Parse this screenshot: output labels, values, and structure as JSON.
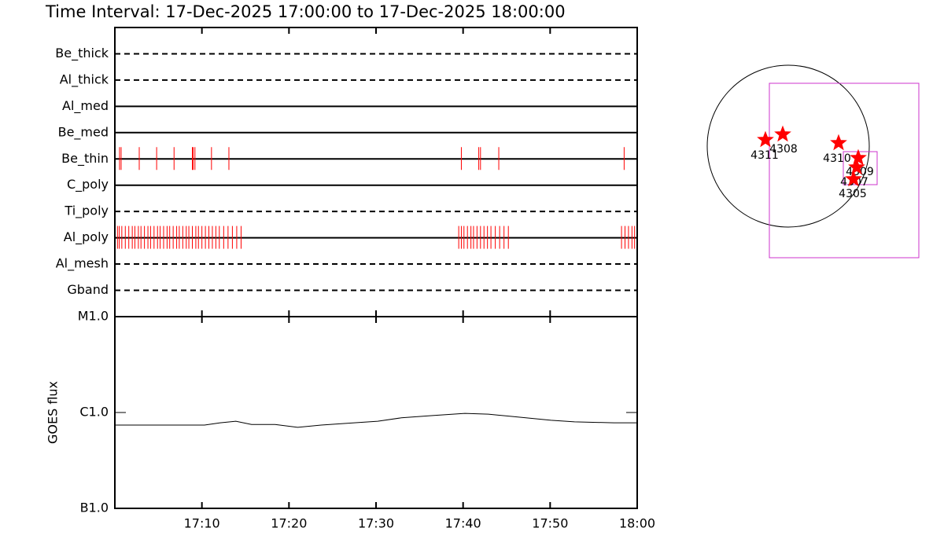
{
  "title": "Time Interval: 17-Dec-2025 17:00:00 to 17-Dec-2025 18:00:00",
  "chart_data": [
    {
      "type": "event",
      "xlim": [
        0,
        60
      ],
      "event_color": "#ff0000",
      "rows": [
        {
          "name": "Be_thick",
          "line_style": "dashed",
          "events": []
        },
        {
          "name": "Al_thick",
          "line_style": "dashed",
          "events": []
        },
        {
          "name": "Al_med",
          "line_style": "solid",
          "events": []
        },
        {
          "name": "Be_med",
          "line_style": "solid",
          "events": []
        },
        {
          "name": "Be_thin",
          "line_style": "solid",
          "events": [
            0.54,
            0.72,
            2.8,
            4.8,
            6.8,
            8.9,
            9.0,
            9.2,
            11.1,
            13.1,
            39.8,
            41.8,
            42.0,
            44.1,
            58.5
          ]
        },
        {
          "name": "C_poly",
          "line_style": "solid",
          "events": []
        },
        {
          "name": "Ti_poly",
          "line_style": "dashed",
          "events": []
        },
        {
          "name": "Al_poly",
          "line_style": "solid",
          "events": [
            0.3,
            0.5,
            0.8,
            1.2,
            1.6,
            2.0,
            2.3,
            2.7,
            3.0,
            3.4,
            3.8,
            4.1,
            4.5,
            4.9,
            5.2,
            5.6,
            6.0,
            6.3,
            6.7,
            7.1,
            7.4,
            7.8,
            8.2,
            8.5,
            8.9,
            9.3,
            9.6,
            10.0,
            10.4,
            10.8,
            11.2,
            11.6,
            12.0,
            12.5,
            13.0,
            13.5,
            14.0,
            14.5,
            39.5,
            39.8,
            40.1,
            40.5,
            40.9,
            41.2,
            41.6,
            42.0,
            42.4,
            42.8,
            43.2,
            43.7,
            44.2,
            44.7,
            45.2,
            58.2,
            58.6,
            59.0,
            59.4,
            59.7
          ]
        },
        {
          "name": "Al_mesh",
          "line_style": "dashed",
          "events": []
        },
        {
          "name": "Gband",
          "line_style": "dashed",
          "events": []
        }
      ]
    },
    {
      "type": "line",
      "ylabel": "GOES flux",
      "log_scale": true,
      "color": "#000000",
      "xlim": [
        0,
        60
      ],
      "xticks": [
        {
          "value": 10,
          "label": "17:10"
        },
        {
          "value": 20,
          "label": "17:20"
        },
        {
          "value": 30,
          "label": "17:30"
        },
        {
          "value": 40,
          "label": "17:40"
        },
        {
          "value": 50,
          "label": "17:50"
        },
        {
          "value": 60,
          "label": "18:00"
        }
      ],
      "ylim": [
        1e-07,
        1e-05
      ],
      "yticks": [
        {
          "value": 1e-07,
          "label": "B1.0"
        },
        {
          "value": 1e-06,
          "label": "C1.0"
        },
        {
          "value": 1e-05,
          "label": "M1.0"
        }
      ],
      "x": [
        0,
        10.3,
        12.1,
        13.9,
        15.7,
        18.4,
        21.0,
        23.7,
        27.5,
        30.2,
        32.9,
        36.5,
        40.2,
        42.9,
        45.6,
        50.1,
        52.8,
        57.3,
        60
      ],
      "values": [
        7.4e-07,
        7.4e-07,
        7.8e-07,
        8.1e-07,
        7.5e-07,
        7.5e-07,
        7e-07,
        7.4e-07,
        7.8e-07,
        8.1e-07,
        8.8e-07,
        9.3e-07,
        9.8e-07,
        9.6e-07,
        9.1e-07,
        8.3e-07,
        8e-07,
        7.8e-07,
        7.8e-07
      ]
    }
  ],
  "map": {
    "regions": [
      {
        "label": "4311"
      },
      {
        "label": "4308"
      },
      {
        "label": "4310"
      },
      {
        "label": "4309"
      },
      {
        "label": "4307"
      },
      {
        "label": "4305"
      }
    ]
  }
}
